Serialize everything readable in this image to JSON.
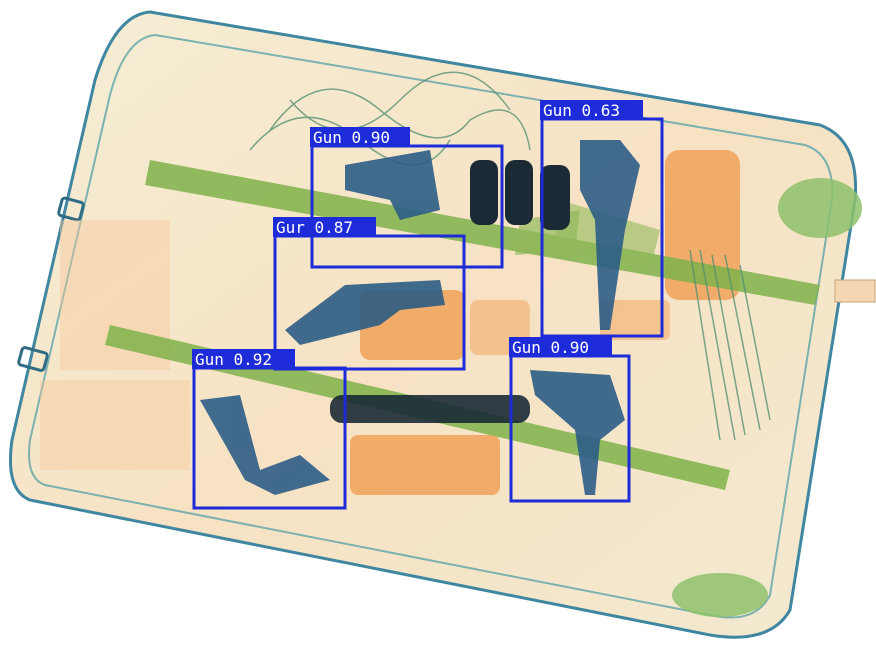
{
  "image": {
    "kind": "x-ray baggage scan with object detection overlay",
    "colors": {
      "background": "#ffffff",
      "bag_shell": "#f3ecd2",
      "bag_outline": "#2f7f9a",
      "organic": "#f0a25a",
      "inorganic": "#7fb24a",
      "metal": "#2c5d86",
      "dense": "#1b2a35",
      "box": "#1e2bd8"
    }
  },
  "detections": [
    {
      "label": "Gun 0.90"
    },
    {
      "label": "Gur 0.87"
    },
    {
      "label": "Gun 0.63"
    },
    {
      "label": "Gun 0.92"
    },
    {
      "label": "Gun 0.90"
    }
  ]
}
